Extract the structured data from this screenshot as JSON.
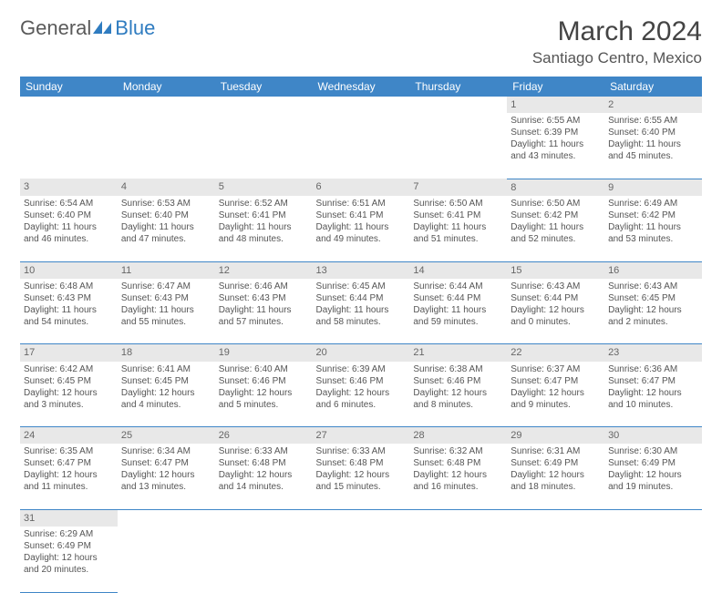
{
  "logo": {
    "word1": "General",
    "word2": "Blue"
  },
  "title": "March 2024",
  "location": "Santiago Centro, Mexico",
  "colors": {
    "headerBg": "#3f86c7",
    "dayRowBg": "#e8e8e8",
    "text": "#555555"
  },
  "weekdays": [
    "Sunday",
    "Monday",
    "Tuesday",
    "Wednesday",
    "Thursday",
    "Friday",
    "Saturday"
  ],
  "weeks": [
    [
      null,
      null,
      null,
      null,
      null,
      {
        "n": "1",
        "sr": "Sunrise: 6:55 AM",
        "ss": "Sunset: 6:39 PM",
        "d1": "Daylight: 11 hours",
        "d2": "and 43 minutes."
      },
      {
        "n": "2",
        "sr": "Sunrise: 6:55 AM",
        "ss": "Sunset: 6:40 PM",
        "d1": "Daylight: 11 hours",
        "d2": "and 45 minutes."
      }
    ],
    [
      {
        "n": "3",
        "sr": "Sunrise: 6:54 AM",
        "ss": "Sunset: 6:40 PM",
        "d1": "Daylight: 11 hours",
        "d2": "and 46 minutes."
      },
      {
        "n": "4",
        "sr": "Sunrise: 6:53 AM",
        "ss": "Sunset: 6:40 PM",
        "d1": "Daylight: 11 hours",
        "d2": "and 47 minutes."
      },
      {
        "n": "5",
        "sr": "Sunrise: 6:52 AM",
        "ss": "Sunset: 6:41 PM",
        "d1": "Daylight: 11 hours",
        "d2": "and 48 minutes."
      },
      {
        "n": "6",
        "sr": "Sunrise: 6:51 AM",
        "ss": "Sunset: 6:41 PM",
        "d1": "Daylight: 11 hours",
        "d2": "and 49 minutes."
      },
      {
        "n": "7",
        "sr": "Sunrise: 6:50 AM",
        "ss": "Sunset: 6:41 PM",
        "d1": "Daylight: 11 hours",
        "d2": "and 51 minutes."
      },
      {
        "n": "8",
        "sr": "Sunrise: 6:50 AM",
        "ss": "Sunset: 6:42 PM",
        "d1": "Daylight: 11 hours",
        "d2": "and 52 minutes."
      },
      {
        "n": "9",
        "sr": "Sunrise: 6:49 AM",
        "ss": "Sunset: 6:42 PM",
        "d1": "Daylight: 11 hours",
        "d2": "and 53 minutes."
      }
    ],
    [
      {
        "n": "10",
        "sr": "Sunrise: 6:48 AM",
        "ss": "Sunset: 6:43 PM",
        "d1": "Daylight: 11 hours",
        "d2": "and 54 minutes."
      },
      {
        "n": "11",
        "sr": "Sunrise: 6:47 AM",
        "ss": "Sunset: 6:43 PM",
        "d1": "Daylight: 11 hours",
        "d2": "and 55 minutes."
      },
      {
        "n": "12",
        "sr": "Sunrise: 6:46 AM",
        "ss": "Sunset: 6:43 PM",
        "d1": "Daylight: 11 hours",
        "d2": "and 57 minutes."
      },
      {
        "n": "13",
        "sr": "Sunrise: 6:45 AM",
        "ss": "Sunset: 6:44 PM",
        "d1": "Daylight: 11 hours",
        "d2": "and 58 minutes."
      },
      {
        "n": "14",
        "sr": "Sunrise: 6:44 AM",
        "ss": "Sunset: 6:44 PM",
        "d1": "Daylight: 11 hours",
        "d2": "and 59 minutes."
      },
      {
        "n": "15",
        "sr": "Sunrise: 6:43 AM",
        "ss": "Sunset: 6:44 PM",
        "d1": "Daylight: 12 hours",
        "d2": "and 0 minutes."
      },
      {
        "n": "16",
        "sr": "Sunrise: 6:43 AM",
        "ss": "Sunset: 6:45 PM",
        "d1": "Daylight: 12 hours",
        "d2": "and 2 minutes."
      }
    ],
    [
      {
        "n": "17",
        "sr": "Sunrise: 6:42 AM",
        "ss": "Sunset: 6:45 PM",
        "d1": "Daylight: 12 hours",
        "d2": "and 3 minutes."
      },
      {
        "n": "18",
        "sr": "Sunrise: 6:41 AM",
        "ss": "Sunset: 6:45 PM",
        "d1": "Daylight: 12 hours",
        "d2": "and 4 minutes."
      },
      {
        "n": "19",
        "sr": "Sunrise: 6:40 AM",
        "ss": "Sunset: 6:46 PM",
        "d1": "Daylight: 12 hours",
        "d2": "and 5 minutes."
      },
      {
        "n": "20",
        "sr": "Sunrise: 6:39 AM",
        "ss": "Sunset: 6:46 PM",
        "d1": "Daylight: 12 hours",
        "d2": "and 6 minutes."
      },
      {
        "n": "21",
        "sr": "Sunrise: 6:38 AM",
        "ss": "Sunset: 6:46 PM",
        "d1": "Daylight: 12 hours",
        "d2": "and 8 minutes."
      },
      {
        "n": "22",
        "sr": "Sunrise: 6:37 AM",
        "ss": "Sunset: 6:47 PM",
        "d1": "Daylight: 12 hours",
        "d2": "and 9 minutes."
      },
      {
        "n": "23",
        "sr": "Sunrise: 6:36 AM",
        "ss": "Sunset: 6:47 PM",
        "d1": "Daylight: 12 hours",
        "d2": "and 10 minutes."
      }
    ],
    [
      {
        "n": "24",
        "sr": "Sunrise: 6:35 AM",
        "ss": "Sunset: 6:47 PM",
        "d1": "Daylight: 12 hours",
        "d2": "and 11 minutes."
      },
      {
        "n": "25",
        "sr": "Sunrise: 6:34 AM",
        "ss": "Sunset: 6:47 PM",
        "d1": "Daylight: 12 hours",
        "d2": "and 13 minutes."
      },
      {
        "n": "26",
        "sr": "Sunrise: 6:33 AM",
        "ss": "Sunset: 6:48 PM",
        "d1": "Daylight: 12 hours",
        "d2": "and 14 minutes."
      },
      {
        "n": "27",
        "sr": "Sunrise: 6:33 AM",
        "ss": "Sunset: 6:48 PM",
        "d1": "Daylight: 12 hours",
        "d2": "and 15 minutes."
      },
      {
        "n": "28",
        "sr": "Sunrise: 6:32 AM",
        "ss": "Sunset: 6:48 PM",
        "d1": "Daylight: 12 hours",
        "d2": "and 16 minutes."
      },
      {
        "n": "29",
        "sr": "Sunrise: 6:31 AM",
        "ss": "Sunset: 6:49 PM",
        "d1": "Daylight: 12 hours",
        "d2": "and 18 minutes."
      },
      {
        "n": "30",
        "sr": "Sunrise: 6:30 AM",
        "ss": "Sunset: 6:49 PM",
        "d1": "Daylight: 12 hours",
        "d2": "and 19 minutes."
      }
    ],
    [
      {
        "n": "31",
        "sr": "Sunrise: 6:29 AM",
        "ss": "Sunset: 6:49 PM",
        "d1": "Daylight: 12 hours",
        "d2": "and 20 minutes."
      },
      null,
      null,
      null,
      null,
      null,
      null
    ]
  ]
}
